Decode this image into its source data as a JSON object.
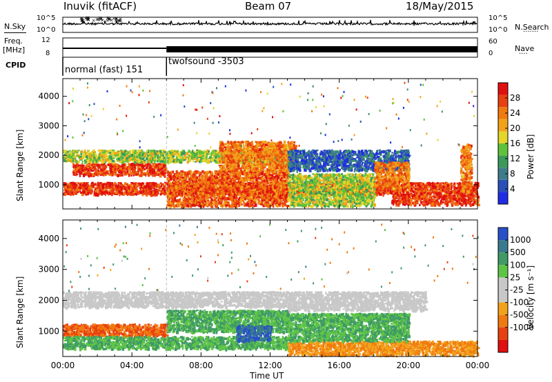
{
  "header": {
    "station": "Inuvik (fitACF)",
    "beam": "Beam 07",
    "date": "18/May/2015"
  },
  "top_panels": {
    "nsky_label": "N.Sky",
    "nsky_ticks": [
      "10^5",
      "10^0"
    ],
    "nsearch_label": "N.Search",
    "nsearch_ticks": [
      "10^5",
      "10^0"
    ],
    "freq_label": "Freq.",
    "freq_unit": "[MHz]",
    "freq_ticks": [
      "12",
      "8"
    ],
    "nave_label": "Nave",
    "nave_ticks": [
      "60",
      "0"
    ],
    "cpid_label": "CPID",
    "cpid_modes": [
      {
        "name": "normal (fast) 151",
        "start_h": 0,
        "end_h": 6
      },
      {
        "name": "twofsound -3503",
        "start_h": 6,
        "end_h": 24
      }
    ]
  },
  "colors": {
    "power": [
      "#1f2ce6",
      "#2a4fb8",
      "#3f7c8a",
      "#3a9a5a",
      "#5fc23a",
      "#e3d52a",
      "#f2a21a",
      "#f07a10",
      "#e84010",
      "#e01010"
    ],
    "velocity": [
      "#2850c8",
      "#3a7a8e",
      "#3f9a66",
      "#5ec446",
      "#c8c8c8",
      "#c8c8c8",
      "#f2a21a",
      "#f07a10",
      "#e84010",
      "#e01010"
    ]
  },
  "chart_data": [
    {
      "type": "heatmap",
      "title": "Power",
      "ylabel": "Slant Range [km]",
      "ylim": [
        180,
        4600
      ],
      "xlim": [
        0,
        24
      ],
      "y_ticks": [
        1000,
        2000,
        3000,
        4000
      ],
      "colorbar_label": "Power [dB]",
      "colorbar_ticks": [
        "4",
        "8",
        "12",
        "16",
        "20",
        "24",
        "28"
      ],
      "colorbar_range": [
        0,
        32
      ],
      "echo_bands": [
        {
          "x": [
            0.0,
            24.0
          ],
          "y": [
            700,
            1100
          ],
          "level": 28
        },
        {
          "x": [
            0.5,
            6.0
          ],
          "y": [
            1350,
            1750
          ],
          "level": 28
        },
        {
          "x": [
            6.0,
            13.0
          ],
          "y": [
            300,
            1500
          ],
          "level": 26
        },
        {
          "x": [
            0.0,
            13.0
          ],
          "y": [
            1800,
            2200
          ],
          "level": 16
        },
        {
          "x": [
            9.0,
            13.5
          ],
          "y": [
            1500,
            2500
          ],
          "level": 24
        },
        {
          "x": [
            13.0,
            18.0
          ],
          "y": [
            300,
            1400
          ],
          "level": 16
        },
        {
          "x": [
            13.0,
            20.0
          ],
          "y": [
            1500,
            2200
          ],
          "level": 6
        },
        {
          "x": [
            19.0,
            24.0
          ],
          "y": [
            350,
            700
          ],
          "level": 28
        },
        {
          "x": [
            18.0,
            20.0
          ],
          "y": [
            900,
            1800
          ],
          "level": 24
        },
        {
          "x": [
            23.0,
            23.6
          ],
          "y": [
            800,
            2400
          ],
          "level": 24
        }
      ]
    },
    {
      "type": "heatmap",
      "title": "Velocity",
      "ylabel": "Slant Range [km]",
      "xlabel": "Time UT",
      "ylim": [
        180,
        4600
      ],
      "xlim": [
        0,
        24
      ],
      "y_ticks": [
        1000,
        2000,
        3000,
        4000
      ],
      "x_ticks": [
        "00:00",
        "04:00",
        "08:00",
        "12:00",
        "16:00",
        "20:00",
        "00:00"
      ],
      "colorbar_label": "Velocity [m s⁻¹]",
      "colorbar_ticks": [
        "1000",
        "500",
        "100",
        "25",
        "-25",
        "-100",
        "-500",
        "-1000"
      ],
      "echo_bands": [
        {
          "x": [
            0.0,
            13.0
          ],
          "y": [
            1800,
            2300
          ],
          "level": 0
        },
        {
          "x": [
            0.0,
            6.0
          ],
          "y": [
            850,
            1250
          ],
          "level": -500
        },
        {
          "x": [
            0.0,
            13.0
          ],
          "y": [
            450,
            850
          ],
          "level": 100
        },
        {
          "x": [
            6.0,
            13.0
          ],
          "y": [
            1000,
            1700
          ],
          "level": 100
        },
        {
          "x": [
            10.0,
            12.0
          ],
          "y": [
            700,
            1200
          ],
          "level": 1000
        },
        {
          "x": [
            13.0,
            24.0
          ],
          "y": [
            250,
            700
          ],
          "level": -100
        },
        {
          "x": [
            13.0,
            20.0
          ],
          "y": [
            700,
            1600
          ],
          "level": 100
        },
        {
          "x": [
            13.0,
            21.0
          ],
          "y": [
            1700,
            2300
          ],
          "level": 0
        }
      ]
    }
  ]
}
